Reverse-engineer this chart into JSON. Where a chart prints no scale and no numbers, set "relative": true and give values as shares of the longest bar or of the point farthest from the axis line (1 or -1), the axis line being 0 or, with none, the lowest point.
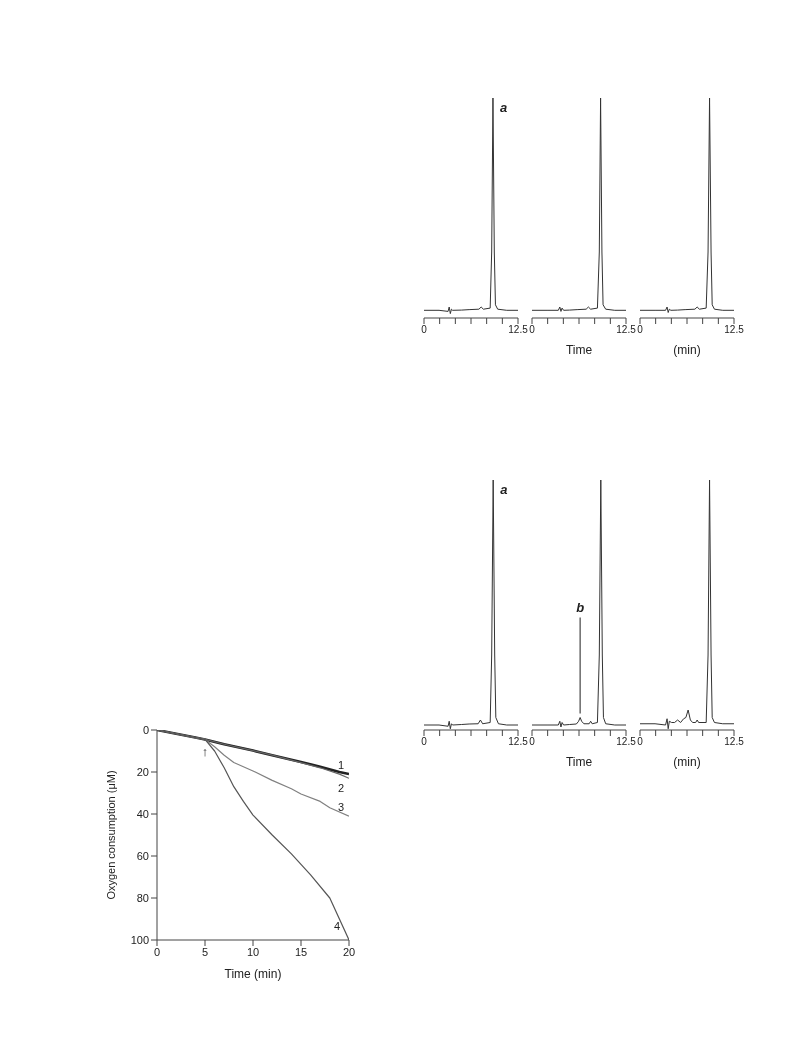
{
  "chart_data": [
    {
      "type": "line",
      "relative": true,
      "color": "#333333",
      "marker": "none",
      "line_style": "solid",
      "annotations": [
        {
          "text": "a",
          "x": 9.17,
          "y": 1
        }
      ],
      "x": [
        0,
        2,
        3.2,
        3.35,
        3.5,
        3.65,
        3.8,
        5,
        6,
        7.3,
        7.6,
        7.9,
        8.8,
        9.0,
        9.17,
        9.35,
        9.5,
        9.8,
        11,
        12.5
      ],
      "values": [
        0.035,
        0.035,
        0.03,
        0.05,
        0.02,
        0.04,
        0.035,
        0.036,
        0.038,
        0.04,
        0.05,
        0.04,
        0.045,
        0.3,
        1,
        0.3,
        0.06,
        0.04,
        0.035,
        0.035
      ],
      "xlim": [
        0,
        12.5
      ],
      "xticks": [
        0,
        {
          "value": 2.08,
          "label": null
        },
        {
          "value": 4.17,
          "label": null
        },
        {
          "value": 6.25,
          "label": null
        },
        {
          "value": 8.33,
          "label": null
        },
        {
          "value": 10.42,
          "label": null
        },
        12.5
      ]
    },
    {
      "type": "line",
      "relative": true,
      "color": "#333333",
      "marker": "none",
      "line_style": "solid",
      "xlabel": "Time",
      "x": [
        0,
        2,
        3.5,
        3.7,
        3.85,
        4.0,
        4.2,
        5,
        6,
        7.2,
        7.5,
        7.8,
        8.7,
        8.95,
        9.12,
        9.3,
        9.45,
        9.8,
        11,
        12.5
      ],
      "values": [
        0.035,
        0.035,
        0.035,
        0.05,
        0.03,
        0.045,
        0.035,
        0.036,
        0.038,
        0.04,
        0.05,
        0.04,
        0.045,
        0.3,
        1,
        0.3,
        0.06,
        0.04,
        0.035,
        0.035
      ],
      "xlim": [
        0,
        12.5
      ],
      "xticks": [
        0,
        {
          "value": 2.08,
          "label": null
        },
        {
          "value": 4.17,
          "label": null
        },
        {
          "value": 6.25,
          "label": null
        },
        {
          "value": 8.33,
          "label": null
        },
        {
          "value": 10.42,
          "label": null
        },
        12.5
      ]
    },
    {
      "type": "line",
      "relative": true,
      "color": "#333333",
      "marker": "none",
      "line_style": "solid",
      "xlabel": "(min)",
      "x": [
        0,
        2,
        3.4,
        3.6,
        3.75,
        3.9,
        4.1,
        5,
        6,
        7.3,
        7.6,
        7.9,
        8.8,
        9.05,
        9.25,
        9.45,
        9.6,
        9.9,
        11,
        12.5
      ],
      "values": [
        0.035,
        0.035,
        0.035,
        0.05,
        0.025,
        0.04,
        0.035,
        0.036,
        0.038,
        0.04,
        0.05,
        0.04,
        0.045,
        0.3,
        1,
        0.3,
        0.06,
        0.04,
        0.035,
        0.035
      ],
      "xlim": [
        0,
        12.5
      ],
      "xticks": [
        0,
        {
          "value": 2.08,
          "label": null
        },
        {
          "value": 4.17,
          "label": null
        },
        {
          "value": 6.25,
          "label": null
        },
        {
          "value": 8.33,
          "label": null
        },
        {
          "value": 10.42,
          "label": null
        },
        12.5
      ]
    },
    {
      "type": "line",
      "relative": true,
      "color": "#333333",
      "marker": "none",
      "line_style": "solid",
      "annotations": [
        {
          "text": "a",
          "x": 9.2,
          "y": 1
        }
      ],
      "x": [
        0,
        2,
        3.2,
        3.35,
        3.5,
        3.65,
        3.8,
        5,
        6,
        7.2,
        7.5,
        7.8,
        8.8,
        9.0,
        9.2,
        9.4,
        9.55,
        9.9,
        11,
        12.5
      ],
      "values": [
        0.02,
        0.02,
        0.015,
        0.035,
        0.005,
        0.025,
        0.02,
        0.022,
        0.024,
        0.025,
        0.04,
        0.025,
        0.03,
        0.3,
        1,
        0.3,
        0.05,
        0.025,
        0.02,
        0.02
      ],
      "xlim": [
        0,
        12.5
      ],
      "xticks": [
        0,
        {
          "value": 2.08,
          "label": null
        },
        {
          "value": 4.17,
          "label": null
        },
        {
          "value": 6.25,
          "label": null
        },
        {
          "value": 8.33,
          "label": null
        },
        {
          "value": 10.42,
          "label": null
        },
        12.5
      ]
    },
    {
      "type": "line",
      "relative": true,
      "color": "#333333",
      "marker": "none",
      "line_style": "solid",
      "xlabel": "Time",
      "annotations": [
        {
          "text": "b",
          "x": 6.4,
          "y": 0.05
        }
      ],
      "x": [
        0,
        2,
        3.5,
        3.7,
        3.85,
        4.0,
        4.2,
        5,
        5.9,
        6.2,
        6.4,
        6.6,
        6.9,
        7.6,
        7.8,
        8.0,
        8.7,
        8.95,
        9.15,
        9.35,
        9.5,
        9.8,
        11,
        12.5
      ],
      "values": [
        0.02,
        0.02,
        0.02,
        0.035,
        0.012,
        0.03,
        0.02,
        0.022,
        0.024,
        0.035,
        0.05,
        0.035,
        0.025,
        0.025,
        0.035,
        0.025,
        0.03,
        0.3,
        1,
        0.3,
        0.05,
        0.025,
        0.02,
        0.02
      ],
      "xlim": [
        0,
        12.5
      ],
      "xticks": [
        0,
        {
          "value": 2.08,
          "label": null
        },
        {
          "value": 4.17,
          "label": null
        },
        {
          "value": 6.25,
          "label": null
        },
        {
          "value": 8.33,
          "label": null
        },
        {
          "value": 10.42,
          "label": null
        },
        12.5
      ]
    },
    {
      "type": "line",
      "relative": true,
      "color": "#333333",
      "marker": "none",
      "line_style": "solid",
      "xlabel": "(min)",
      "x": [
        0,
        2,
        3.4,
        3.6,
        3.75,
        3.9,
        4.2,
        4.6,
        5.0,
        5.4,
        5.8,
        6.1,
        6.4,
        6.7,
        7.0,
        7.4,
        7.6,
        7.8,
        8.8,
        9.05,
        9.25,
        9.45,
        9.6,
        9.9,
        11,
        12.5
      ],
      "values": [
        0.025,
        0.025,
        0.02,
        0.045,
        0.005,
        0.035,
        0.03,
        0.03,
        0.04,
        0.03,
        0.045,
        0.05,
        0.08,
        0.04,
        0.03,
        0.03,
        0.04,
        0.03,
        0.03,
        0.3,
        1,
        0.3,
        0.05,
        0.03,
        0.025,
        0.025
      ],
      "xlim": [
        0,
        12.5
      ],
      "xticks": [
        0,
        {
          "value": 2.08,
          "label": null
        },
        {
          "value": 4.17,
          "label": null
        },
        {
          "value": 6.25,
          "label": null
        },
        {
          "value": 8.33,
          "label": null
        },
        {
          "value": 10.42,
          "label": null
        },
        12.5
      ]
    },
    {
      "type": "line",
      "xlabel": "Time (min)",
      "ylabel": "Oxygen consumption (μM)",
      "marker": "none",
      "line_style": "solid",
      "annotations": [
        {
          "text": "↑",
          "x": 5,
          "y": 4.5
        }
      ],
      "series": [
        {
          "name": "1",
          "color": "#222222",
          "x": [
            0,
            2,
            4,
            5,
            7,
            10,
            12,
            15,
            17,
            19,
            20
          ],
          "values": [
            0,
            1.8,
            3.6,
            4.5,
            6.8,
            9.8,
            12,
            15.2,
            17.5,
            20,
            21
          ]
        },
        {
          "name": "2",
          "color": "#666666",
          "x": [
            0,
            2,
            4,
            5,
            7,
            10,
            12,
            15,
            17,
            19,
            20
          ],
          "values": [
            0,
            1.8,
            3.6,
            4.5,
            6.8,
            9.8,
            12,
            15.5,
            18,
            21,
            23
          ]
        },
        {
          "name": "3",
          "color": "#808080",
          "x": [
            0,
            2,
            4,
            5,
            6,
            7,
            8,
            10,
            12,
            14,
            15,
            17,
            18,
            20
          ],
          "values": [
            0,
            1.8,
            3.6,
            4.5,
            8,
            12,
            15.5,
            19.5,
            24,
            28,
            30.5,
            34,
            37,
            41
          ]
        },
        {
          "name": "4",
          "color": "#555555",
          "x": [
            0,
            2,
            4,
            5,
            6,
            7,
            8,
            9,
            10,
            12,
            14,
            16,
            18,
            20
          ],
          "values": [
            0,
            1.8,
            3.6,
            4.5,
            10,
            18,
            27,
            34,
            40.5,
            50,
            59,
            69,
            80,
            100
          ]
        }
      ],
      "xlim": [
        0,
        20
      ],
      "xticks": [
        0,
        5,
        10,
        15,
        20
      ],
      "ylim": [
        100,
        0
      ],
      "yticks": [
        0,
        20,
        40,
        60,
        80,
        100
      ]
    }
  ]
}
